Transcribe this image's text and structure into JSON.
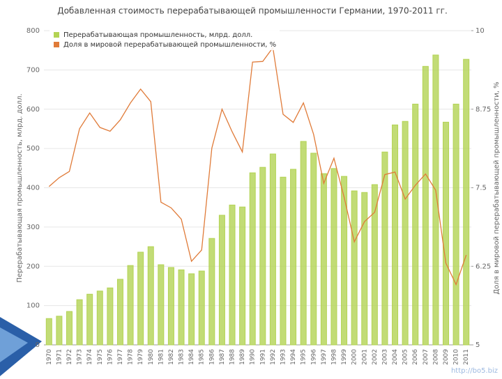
{
  "chart_data": {
    "type": "bar-line",
    "title": "Добавленная стоимость перерабатывающей промышленности Германии, 1970-2011 гг.",
    "ylabel": "Перерабатывающая промышленность, млрд. долл.",
    "y2label": "Доля в мировой перерабатывающей промышленности, %",
    "watermark": "http://bo5.biz",
    "categories": [
      "1970",
      "1971",
      "1972",
      "1973",
      "1974",
      "1975",
      "1976",
      "1977",
      "1978",
      "1979",
      "1980",
      "1981",
      "1982",
      "1983",
      "1984",
      "1985",
      "1986",
      "1987",
      "1988",
      "1989",
      "1990",
      "1991",
      "1992",
      "1993",
      "1994",
      "1995",
      "1996",
      "1997",
      "1998",
      "1999",
      "2000",
      "2001",
      "2002",
      "2003",
      "2004",
      "2005",
      "2006",
      "2007",
      "2008",
      "2009",
      "2010",
      "2011"
    ],
    "series": [
      {
        "name": "Перерабатывающая промышленность, млрд. долл.",
        "type": "bar",
        "color": "#b3d354",
        "values": [
          67,
          73,
          85,
          115,
          129,
          137,
          145,
          167,
          202,
          236,
          250,
          204,
          197,
          191,
          181,
          188,
          271,
          330,
          356,
          351,
          438,
          452,
          486,
          427,
          447,
          518,
          488,
          436,
          449,
          429,
          392,
          388,
          408,
          491,
          560,
          569,
          613,
          709,
          738,
          567,
          613,
          727
        ]
      },
      {
        "name": "Доля в мировой перерабатывающей промышленности, %",
        "type": "line",
        "axis": "y2",
        "color": "#e07b39",
        "values": [
          7.52,
          7.66,
          7.76,
          8.44,
          8.69,
          8.46,
          8.4,
          8.58,
          8.85,
          9.07,
          8.87,
          7.27,
          7.18,
          7.0,
          6.33,
          6.51,
          8.13,
          8.75,
          8.39,
          8.07,
          9.5,
          9.51,
          9.73,
          8.67,
          8.54,
          8.85,
          8.35,
          7.57,
          7.97,
          7.35,
          6.64,
          6.96,
          7.11,
          7.71,
          7.75,
          7.32,
          7.54,
          7.72,
          7.46,
          6.3,
          5.96,
          6.43
        ]
      }
    ],
    "ylim": [
      0,
      800
    ],
    "yticks": [
      0,
      100,
      200,
      300,
      400,
      500,
      600,
      700,
      800
    ],
    "y2lim": [
      5,
      10
    ],
    "y2ticks": [
      5,
      6.25,
      7.5,
      8.75,
      10
    ],
    "grid": true
  }
}
